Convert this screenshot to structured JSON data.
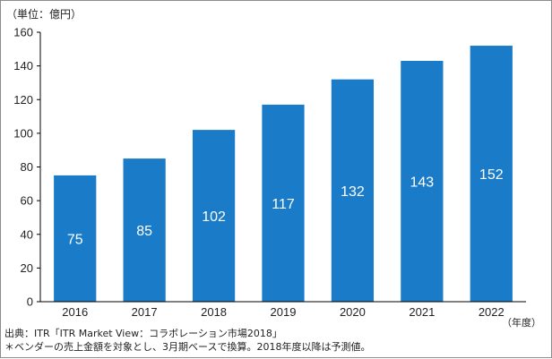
{
  "unit_label": "（単位：億円）",
  "year_suffix": "（年度）",
  "source": "出典：ITR「ITR Market View：コラボレーション市場2018」",
  "note": "＊ベンダーの売上金額を対象とし、3月期ベースで換算。2018年度以降は予測値。",
  "colors": {
    "bar": "#1a7cc9",
    "bar_label": "#ffffff",
    "axis": "#000000",
    "text": "#222222"
  },
  "chart_data": {
    "type": "bar",
    "categories": [
      "2016",
      "2017",
      "2018",
      "2019",
      "2020",
      "2021",
      "2022"
    ],
    "values": [
      75,
      85,
      102,
      117,
      132,
      143,
      152
    ],
    "value_labels": [
      "75",
      "85",
      "102",
      "117",
      "132",
      "143",
      "152"
    ],
    "ylim": [
      0,
      160
    ],
    "yticks": [
      0,
      20,
      40,
      60,
      80,
      100,
      120,
      140,
      160
    ],
    "grid": false,
    "data_labels_position": "inside-middle"
  }
}
